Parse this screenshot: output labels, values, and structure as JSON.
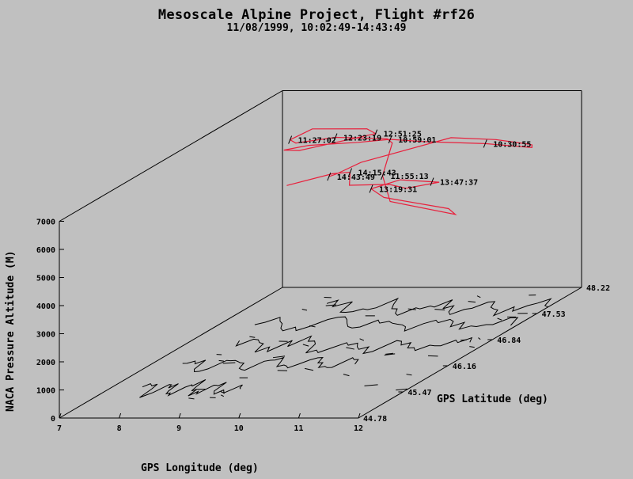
{
  "chart_data": {
    "type": "line",
    "title": "Mesoscale Alpine Project, Flight #rf26",
    "subtitle": "11/08/1999, 10:02:49-14:43:49",
    "xlabel": "GPS Longitude (deg)",
    "ylabel": "GPS Latitude (deg)",
    "zlabel": "NACA Pressure Altitude (M)",
    "xlim": [
      7,
      12
    ],
    "ylim": [
      44.78,
      48.22
    ],
    "zlim": [
      0,
      7000
    ],
    "x_ticks": [
      "7",
      "8",
      "9",
      "10",
      "11",
      "12"
    ],
    "y_ticks": [
      "44.78",
      "45.47",
      "46.16",
      "46.84",
      "47.53",
      "48.22"
    ],
    "z_ticks": [
      "0",
      "1000",
      "2000",
      "3000",
      "4000",
      "5000",
      "6000",
      "7000"
    ],
    "series": [
      {
        "color": "#e8203c",
        "x": [
          9.35,
          9.6,
          10.2,
          11.0,
          11.4,
          11.85,
          11.92,
          11.95,
          11.3,
          10.05,
          9.55,
          9.1,
          8.6,
          8.4,
          8.55,
          8.8,
          9.5,
          9.3,
          8.55,
          8.45,
          8.6,
          9.1,
          9.8,
          10.05,
          10.3,
          10.6,
          11.3,
          11.1,
          10.3,
          10.0,
          10.55,
          11.3,
          11.55,
          11.45,
          11.3,
          10.7,
          10.3,
          10.05,
          9.62
        ],
        "y": [
          46.77,
          46.66,
          46.48,
          47.13,
          47.45,
          47.55,
          47.53,
          47.5,
          47.38,
          47.58,
          47.53,
          47.45,
          47.15,
          46.95,
          47.05,
          47.25,
          47.35,
          47.4,
          47.25,
          47.0,
          46.95,
          47.1,
          47.25,
          47.1,
          46.72,
          46.56,
          46.92,
          47.0,
          46.74,
          46.82,
          46.76,
          46.56,
          46.44,
          46.02,
          45.9,
          45.84,
          46.22,
          46.18,
          45.87
        ],
        "z": [
          5900,
          6150,
          6800,
          6800,
          6300,
          6000,
          6000,
          5950,
          6250,
          6050,
          6200,
          6200,
          6500,
          6600,
          6450,
          6400,
          6650,
          6750,
          6950,
          6900,
          6850,
          6850,
          6600,
          6650,
          6000,
          5300,
          4350,
          4450,
          5200,
          5400,
          5800,
          6000,
          6150,
          6500,
          6800,
          6850,
          6800,
          6800,
          6800
        ],
        "time_labels": [
          {
            "text": "10:30:55",
            "index": 8
          },
          {
            "text": "10:59:01",
            "index": 10
          },
          {
            "text": "11:27:02",
            "index": 19
          },
          {
            "text": "11:55:13",
            "index": 24
          },
          {
            "text": "12:23:19",
            "index": 21
          },
          {
            "text": "12:51:25",
            "index": 16
          },
          {
            "text": "13:19:31",
            "index": 29
          },
          {
            "text": "13:47:37",
            "index": 31
          },
          {
            "text": "14:15:43",
            "index": 36
          },
          {
            "text": "14:43:49",
            "index": 0
          }
        ]
      }
    ]
  }
}
